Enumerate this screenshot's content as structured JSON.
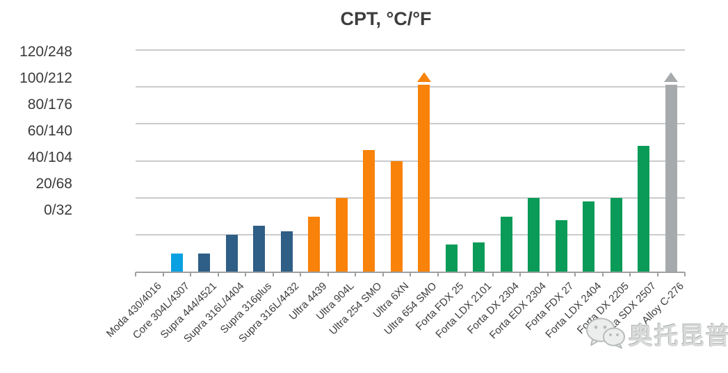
{
  "title": "CPT, °C/°F",
  "chart_data": {
    "type": "bar",
    "title": "CPT, °C/°F",
    "y_axis": {
      "tick_labels": [
        "120/248",
        "100/212",
        "80/176",
        "60/140",
        "40/104",
        "20/68",
        "0/32"
      ],
      "tick_values": [
        120,
        100,
        80,
        60,
        40,
        20,
        0
      ],
      "unit": "°C/°F",
      "ylim": [
        0,
        120
      ],
      "grid": true
    },
    "categories": [
      "Moda 430/4016",
      "Core 304L/4307",
      "Supra 444/4521",
      "Supra 316L/4404",
      "Supra 316plus",
      "Supra 316L/4432",
      "Ultra 4439",
      "Ultra 904L",
      "Ultra 254 SMO",
      "Ultra 6XN",
      "Ultra 654 SMO",
      "Forta FDX 25",
      "Forta LDX 2101",
      "Forta DX 2304",
      "Forta EDX 2304",
      "Forta FDX 27",
      "Forta LDX 2404",
      "Forta DX 2205",
      "Forta SDX 2507",
      "Alloy C-276"
    ],
    "values": [
      0,
      10,
      10,
      20,
      25,
      22,
      30,
      40,
      66,
      60,
      101,
      15,
      16,
      30,
      40,
      28,
      38,
      40,
      68,
      101
    ],
    "bar_colors": [
      "#0aa0e2",
      "#0aa0e2",
      "#2f5e86",
      "#2f5e86",
      "#2f5e86",
      "#2f5e86",
      "#f8820a",
      "#f8820a",
      "#f8820a",
      "#f8820a",
      "#f8820a",
      "#0a9b58",
      "#0a9b58",
      "#0a9b58",
      "#0a9b58",
      "#0a9b58",
      "#0a9b58",
      "#0a9b58",
      "#0a9b58",
      "#a7aaac"
    ],
    "exceeds_scale": [
      false,
      false,
      false,
      false,
      false,
      false,
      false,
      false,
      false,
      false,
      true,
      false,
      false,
      false,
      false,
      false,
      false,
      false,
      false,
      true
    ],
    "series_groups": [
      {
        "name": "Core",
        "color": "#0aa0e2"
      },
      {
        "name": "Supra",
        "color": "#2f5e86"
      },
      {
        "name": "Ultra",
        "color": "#f8820a"
      },
      {
        "name": "Forta",
        "color": "#0a9b58"
      },
      {
        "name": "Alloy",
        "color": "#a7aaac"
      }
    ],
    "legend": "none",
    "notes": "Bars for Ultra 654 SMO and Alloy C-276 carry arrow markers: value exceeds top of scale (>100/212)"
  },
  "watermark": {
    "icon": "wechat-icon",
    "text": "奥托昆普"
  }
}
